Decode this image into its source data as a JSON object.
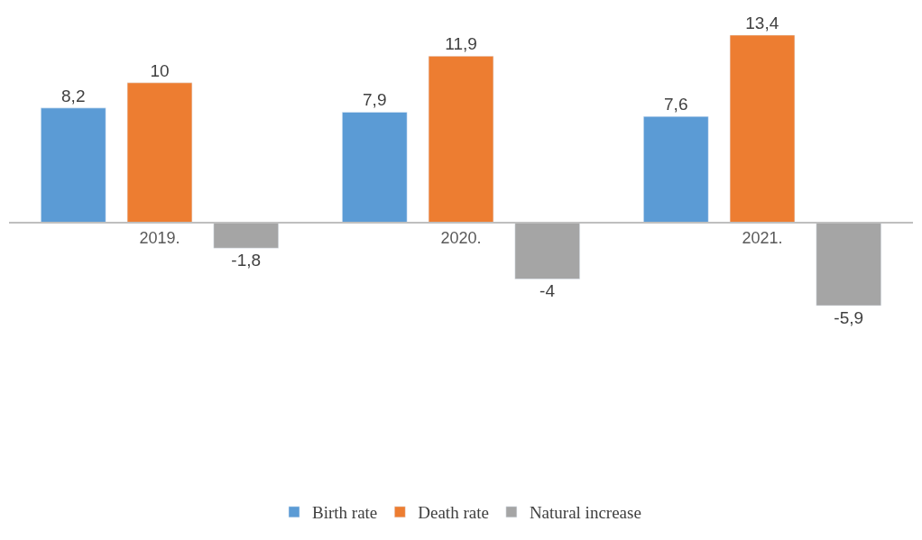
{
  "chart_data": {
    "type": "bar",
    "categories": [
      "2019.",
      "2020.",
      "2021."
    ],
    "series": [
      {
        "name": "Birth rate",
        "color": "#5b9bd5",
        "values": [
          8.2,
          7.9,
          7.6
        ],
        "value_labels": [
          "8,2",
          "7,9",
          "7,6"
        ]
      },
      {
        "name": "Death rate",
        "color": "#ed7d31",
        "values": [
          10,
          11.9,
          13.4
        ],
        "value_labels": [
          "10",
          "11,9",
          "13,4"
        ]
      },
      {
        "name": "Natural increase",
        "color": "#a5a5a5",
        "values": [
          -1.8,
          -4,
          -5.9
        ],
        "value_labels": [
          "-1,8",
          "-4",
          "-5,9"
        ]
      }
    ],
    "legend": "bottom"
  }
}
